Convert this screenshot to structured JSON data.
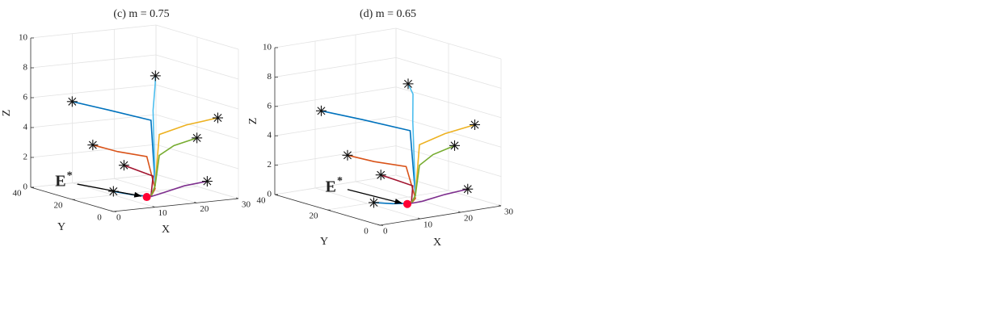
{
  "chart_data": [
    {
      "type": "line3d",
      "title": "(c) m = 0.75",
      "xlabel": "X",
      "ylabel": "Y",
      "zlabel": "Z",
      "xlim": [
        0,
        30
      ],
      "ylim": [
        0,
        40
      ],
      "zlim": [
        0,
        10
      ],
      "xticks": [
        0,
        10,
        20,
        30
      ],
      "yticks": [
        0,
        20,
        40
      ],
      "zticks": [
        0,
        2,
        4,
        6,
        8,
        10
      ],
      "grid": true,
      "start_marker": "asterisk",
      "series": [
        {
          "color": "#0072bd",
          "x": [
            5,
            10,
            14,
            14,
            13
          ],
          "y": [
            30,
            22,
            10,
            8,
            8
          ],
          "z": [
            6,
            5.6,
            5.3,
            1,
            0.3
          ]
        },
        {
          "color": "#d95319",
          "x": [
            5,
            9,
            13,
            14,
            13
          ],
          "y": [
            20,
            16,
            10,
            8,
            8
          ],
          "z": [
            3.5,
            3.1,
            2.9,
            0.8,
            0.3
          ]
        },
        {
          "color": "#a2142f",
          "x": [
            10,
            12,
            14,
            13
          ],
          "y": [
            15,
            12,
            9,
            8
          ],
          "z": [
            2.2,
            1.9,
            1.6,
            0.3
          ]
        },
        {
          "color": "#0072bd",
          "x": [
            5,
            9,
            13
          ],
          "y": [
            10,
            9,
            8
          ],
          "z": [
            0.8,
            0.5,
            0.3
          ]
        },
        {
          "color": "#4dbeee",
          "x": [
            20,
            16,
            14,
            14,
            13
          ],
          "y": [
            20,
            12,
            9,
            8,
            8
          ],
          "z": [
            7.7,
            7.6,
            6,
            1,
            0.3
          ]
        },
        {
          "color": "#edb120",
          "x": [
            30,
            22,
            15,
            14,
            13
          ],
          "y": [
            10,
            9,
            8,
            8,
            8
          ],
          "z": [
            5,
            4.8,
            4.4,
            1,
            0.3
          ]
        },
        {
          "color": "#77ac30",
          "x": [
            25,
            19,
            15,
            14,
            13
          ],
          "y": [
            10,
            9,
            8,
            8,
            8
          ],
          "z": [
            3.8,
            3.5,
            3,
            1,
            0.3
          ]
        },
        {
          "color": "#7e2f8e",
          "x": [
            25,
            20,
            15,
            13
          ],
          "y": [
            5,
            6,
            7,
            8
          ],
          "z": [
            1.1,
            0.9,
            0.5,
            0.3
          ]
        }
      ],
      "equilibrium": {
        "label": "E",
        "label_sup": "*",
        "x": 12,
        "y": 8,
        "z": 0.3,
        "color": "#ff0033"
      }
    },
    {
      "type": "line3d",
      "title": "(d) m = 0.65",
      "xlabel": "X",
      "ylabel": "Y",
      "zlabel": "Z",
      "xlim": [
        0,
        30
      ],
      "ylim": [
        0,
        40
      ],
      "zlim": [
        0,
        10
      ],
      "xticks": [
        0,
        10,
        20,
        30
      ],
      "yticks": [
        0,
        20,
        40
      ],
      "zticks": [
        0,
        2,
        4,
        6,
        8,
        10
      ],
      "grid": true,
      "start_marker": "asterisk",
      "series": [
        {
          "color": "#0072bd",
          "x": [
            5,
            10,
            14,
            14,
            13
          ],
          "y": [
            30,
            22,
            10,
            8,
            8
          ],
          "z": [
            6,
            5.6,
            5.3,
            1,
            0.5
          ]
        },
        {
          "color": "#d95319",
          "x": [
            5,
            9,
            13,
            14,
            13
          ],
          "y": [
            20,
            16,
            10,
            8,
            8
          ],
          "z": [
            3.5,
            3.1,
            2.9,
            0.8,
            0.5
          ]
        },
        {
          "color": "#a2142f",
          "x": [
            10,
            12,
            14,
            13
          ],
          "y": [
            15,
            12,
            9,
            8
          ],
          "z": [
            2.2,
            1.9,
            1.6,
            0.5
          ]
        },
        {
          "color": "#0072bd",
          "x": [
            5,
            9,
            13
          ],
          "y": [
            10,
            9,
            8
          ],
          "z": [
            0.8,
            0.6,
            0.5
          ]
        },
        {
          "color": "#4dbeee",
          "x": [
            20,
            16,
            14,
            14,
            13
          ],
          "y": [
            20,
            12,
            9,
            8,
            8
          ],
          "z": [
            7.7,
            7.6,
            6,
            1,
            0.5
          ]
        },
        {
          "color": "#edb120",
          "x": [
            30,
            22,
            15,
            14,
            13
          ],
          "y": [
            10,
            9,
            8,
            8,
            8
          ],
          "z": [
            5,
            4.8,
            4.4,
            1,
            0.5
          ]
        },
        {
          "color": "#77ac30",
          "x": [
            25,
            19,
            15,
            14,
            13
          ],
          "y": [
            10,
            9,
            8,
            8,
            8
          ],
          "z": [
            3.8,
            3.5,
            3,
            1,
            0.5
          ]
        },
        {
          "color": "#7e2f8e",
          "x": [
            25,
            20,
            15,
            13
          ],
          "y": [
            5,
            6,
            7,
            8
          ],
          "z": [
            1.1,
            0.9,
            0.6,
            0.5
          ]
        }
      ],
      "equilibrium": {
        "label": "E",
        "label_sup": "*",
        "x": 12,
        "y": 8,
        "z": 0.5,
        "color": "#ff0033"
      }
    }
  ]
}
